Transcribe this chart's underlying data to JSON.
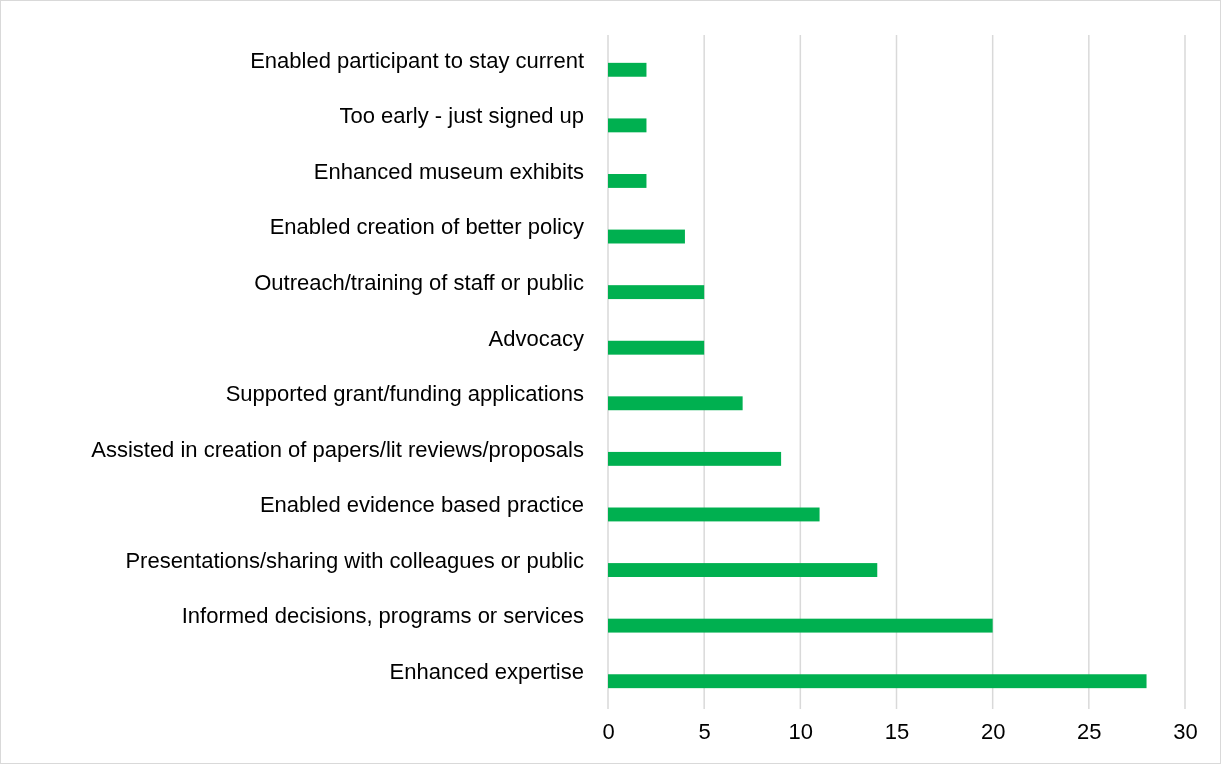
{
  "chart_data": {
    "type": "bar",
    "orientation": "horizontal",
    "grid": "x",
    "color": "#00b050",
    "categories": [
      "Enabled participant to stay current",
      "Too early - just signed up",
      "Enhanced museum exhibits",
      "Enabled creation of better policy",
      "Outreach/training of staff or public",
      "Advocacy",
      "Supported grant/funding applications",
      "Assisted in creation of papers/lit reviews/proposals",
      "Enabled evidence based practice",
      "Presentations/sharing with colleagues or public",
      "Informed decisions, programs or services",
      "Enhanced expertise"
    ],
    "values": [
      2,
      2,
      2,
      4,
      5,
      5,
      7,
      9,
      11,
      14,
      20,
      28
    ],
    "xlim": [
      0,
      30
    ],
    "xticks": [
      0,
      5,
      10,
      15,
      20,
      25,
      30
    ]
  }
}
